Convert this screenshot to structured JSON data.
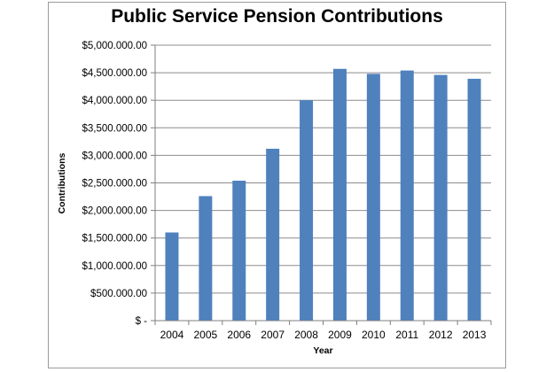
{
  "chart_data": {
    "type": "bar",
    "title": "Public Service Pension Contributions",
    "xlabel": "Year",
    "ylabel": "Contributions",
    "categories": [
      "2004",
      "2005",
      "2006",
      "2007",
      "2008",
      "2009",
      "2010",
      "2011",
      "2012",
      "2013"
    ],
    "values": [
      1600000,
      2260000,
      2540000,
      3120000,
      4000000,
      4570000,
      4480000,
      4540000,
      4460000,
      4390000
    ],
    "ylim": [
      0,
      5000000
    ],
    "yticks": [
      0,
      500000,
      1000000,
      1500000,
      2000000,
      2500000,
      3000000,
      3500000,
      4000000,
      4500000,
      5000000
    ],
    "ytick_labels": [
      "$ -",
      "$500.000.00",
      "$1,000.000.00",
      "$1,500.000.00",
      "$2,000.000.00",
      "$2,500.000.00",
      "$3,000.000.00",
      "$3,500.000.00",
      "$4,000.000.00",
      "$4,500.000.00",
      "$5,000.000.00"
    ],
    "grid": true,
    "legend": "none",
    "bar_color": "#4f81bd",
    "grid_color": "#8c8c8c"
  }
}
